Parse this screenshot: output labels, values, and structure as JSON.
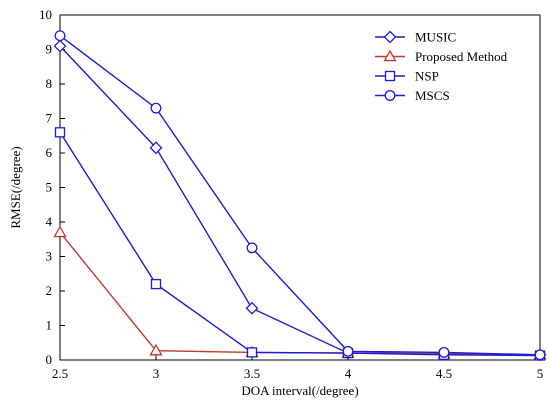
{
  "chart_data": {
    "type": "line",
    "xlabel": "DOA interval(/degree)",
    "ylabel": "RMSE(/degree)",
    "xlim": [
      2.5,
      5
    ],
    "ylim": [
      0,
      10
    ],
    "x_ticks": [
      "2.5",
      "3",
      "3.5",
      "4",
      "4.5",
      "5"
    ],
    "y_ticks": [
      "0",
      "1",
      "2",
      "3",
      "4",
      "5",
      "6",
      "7",
      "8",
      "9",
      "10"
    ],
    "grid": false,
    "legend_position": "top-right",
    "x": [
      2.5,
      3,
      3.5,
      4,
      4.5,
      5
    ],
    "series": [
      {
        "name": "MUSIC",
        "color": "#1c1cd2",
        "marker": "diamond",
        "values": [
          9.1,
          6.15,
          1.5,
          0.2,
          0.18,
          0.15
        ]
      },
      {
        "name": "Proposed Method",
        "color": "#c0392b",
        "marker": "triangle",
        "values": [
          3.7,
          0.27,
          0.22,
          0.2,
          0.18,
          0.15
        ]
      },
      {
        "name": "NSP",
        "color": "#1c1cd2",
        "marker": "square",
        "values": [
          6.6,
          2.2,
          0.22,
          0.2,
          0.15,
          0.13
        ]
      },
      {
        "name": "MSCS",
        "color": "#1c1cd2",
        "marker": "circle",
        "values": [
          9.4,
          7.3,
          3.25,
          0.25,
          0.22,
          0.15
        ]
      }
    ]
  }
}
